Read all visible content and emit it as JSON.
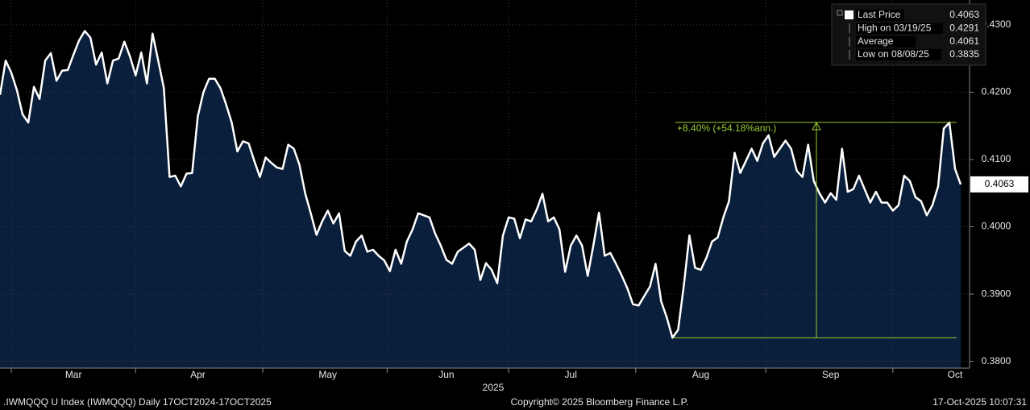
{
  "chart_data": {
    "type": "area",
    "xlabel": "2025",
    "footer_left": ".IWMQQQ U Index (IWMQQQ) Daily 17OCT2024-17OCT2025",
    "footer_center": "Copyright© 2025 Bloomberg Finance L.P.",
    "footer_right": "17-Oct-2025 10:07:31",
    "categories": [
      null,
      null,
      null,
      null,
      null,
      null,
      null,
      null,
      null,
      null,
      null,
      null,
      null,
      "Mar",
      null,
      null,
      null,
      null,
      null,
      null,
      null,
      null,
      null,
      null,
      null,
      null,
      null,
      null,
      null,
      null,
      null,
      null,
      null,
      null,
      null,
      "Apr",
      null,
      null,
      null,
      null,
      null,
      null,
      null,
      null,
      null,
      null,
      null,
      null,
      null,
      null,
      null,
      null,
      null,
      null,
      null,
      null,
      null,
      null,
      "May",
      null,
      null,
      null,
      null,
      null,
      null,
      null,
      null,
      null,
      null,
      null,
      null,
      null,
      null,
      null,
      null,
      null,
      null,
      null,
      null,
      "Jun",
      null,
      null,
      null,
      null,
      null,
      null,
      null,
      null,
      null,
      null,
      null,
      null,
      null,
      null,
      null,
      null,
      null,
      null,
      null,
      null,
      null,
      "Jul",
      null,
      null,
      null,
      null,
      null,
      null,
      null,
      null,
      null,
      null,
      null,
      null,
      null,
      null,
      null,
      null,
      null,
      null,
      null,
      null,
      null,
      null,
      "Aug",
      null,
      null,
      null,
      null,
      null,
      null,
      null,
      null,
      null,
      null,
      null,
      null,
      null,
      null,
      null,
      null,
      null,
      null,
      null,
      null,
      null,
      null,
      "Sep",
      null,
      null,
      null,
      null,
      null,
      null,
      null,
      null,
      null,
      null,
      null,
      null,
      null,
      null,
      null,
      null,
      null,
      null,
      null,
      null,
      null,
      "Oct",
      null
    ],
    "series": [
      {
        "name": "Last Price",
        "color": "#ffffff",
        "fill": "#0a1f3b",
        "values": [
          0.4196,
          0.4247,
          0.4229,
          0.4203,
          0.4167,
          0.4155,
          0.4208,
          0.419,
          0.4247,
          0.4258,
          0.4217,
          0.4232,
          0.4233,
          0.4256,
          0.4277,
          0.4291,
          0.4281,
          0.4241,
          0.4259,
          0.4213,
          0.4247,
          0.425,
          0.4275,
          0.4253,
          0.4225,
          0.4259,
          0.4213,
          0.4287,
          0.4247,
          0.4206,
          0.4074,
          0.4076,
          0.406,
          0.4079,
          0.408,
          0.4164,
          0.42,
          0.422,
          0.422,
          0.4206,
          0.4182,
          0.4155,
          0.4112,
          0.4127,
          0.4124,
          0.4098,
          0.4074,
          0.4103,
          0.4095,
          0.4088,
          0.4086,
          0.4122,
          0.4116,
          0.4092,
          0.405,
          0.402,
          0.3988,
          0.4008,
          0.4024,
          0.4005,
          0.402,
          0.3964,
          0.3957,
          0.3978,
          0.3987,
          0.3963,
          0.3966,
          0.3957,
          0.395,
          0.3934,
          0.3966,
          0.3945,
          0.3978,
          0.3996,
          0.402,
          0.4017,
          0.4014,
          0.399,
          0.3972,
          0.3951,
          0.3945,
          0.3963,
          0.3969,
          0.3975,
          0.3966,
          0.3921,
          0.3946,
          0.3936,
          0.3916,
          0.3987,
          0.4014,
          0.4012,
          0.3983,
          0.4011,
          0.4008,
          0.4026,
          0.4049,
          0.4008,
          0.4014,
          0.3996,
          0.3933,
          0.3972,
          0.3987,
          0.3972,
          0.3927,
          0.3972,
          0.4021,
          0.3957,
          0.3961,
          0.3945,
          0.3928,
          0.3909,
          0.3885,
          0.3883,
          0.3897,
          0.3911,
          0.3945,
          0.3889,
          0.3865,
          0.3835,
          0.3847,
          0.3912,
          0.3987,
          0.3939,
          0.3936,
          0.3954,
          0.3978,
          0.3984,
          0.4014,
          0.4038,
          0.411,
          0.408,
          0.4098,
          0.4116,
          0.4098,
          0.4124,
          0.4136,
          0.4104,
          0.4116,
          0.4128,
          0.4116,
          0.4083,
          0.4074,
          0.4122,
          0.4068,
          0.405,
          0.4036,
          0.405,
          0.404,
          0.4116,
          0.4052,
          0.4056,
          0.4076,
          0.4056,
          0.4036,
          0.4052,
          0.4036,
          0.4036,
          0.4024,
          0.4032,
          0.4076,
          0.4068,
          0.4044,
          0.4038,
          0.4017,
          0.4032,
          0.406,
          0.4146,
          0.4155,
          0.4086,
          0.4063
        ]
      }
    ],
    "legend": [
      {
        "label": "Last Price",
        "value": 0.4063
      },
      {
        "label": "High on 03/19/25",
        "value": 0.4291
      },
      {
        "label": "Average",
        "value": 0.4061
      },
      {
        "label": "Low on 08/08/25",
        "value": 0.3835
      }
    ],
    "annotation": {
      "text": "+8.40% (+54.18%ann.)",
      "low": 0.3835,
      "high": 0.4155,
      "color": "#9acd32"
    },
    "ylim": [
      0.379,
      0.4337
    ],
    "yticks": [
      {
        "value": 0.38,
        "label": "0.3800"
      },
      {
        "value": 0.39,
        "label": "0.3900"
      },
      {
        "value": 0.4,
        "label": "0.4000"
      },
      {
        "value": 0.41,
        "label": "0.4100"
      },
      {
        "value": 0.42,
        "label": "0.4200"
      },
      {
        "value": 0.43,
        "label": "0.4300"
      }
    ],
    "grid": true
  }
}
